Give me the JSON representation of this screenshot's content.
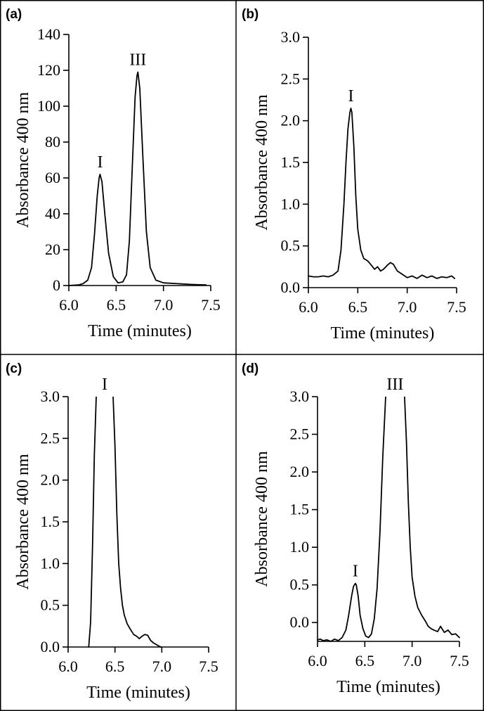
{
  "chart_data": [
    {
      "panel": "(a)",
      "type": "line",
      "xlabel": "Time (minutes)",
      "ylabel": "Absorbance 400 nm",
      "xlim": [
        6.0,
        7.5
      ],
      "ylim": [
        0,
        140
      ],
      "xticks": [
        "6.0",
        "6.5",
        "7.0",
        "7.5"
      ],
      "yticks": [
        "0",
        "20",
        "40",
        "60",
        "80",
        "100",
        "120",
        "140"
      ],
      "series": [
        {
          "name": "trace",
          "x": [
            6.0,
            6.1,
            6.15,
            6.2,
            6.24,
            6.27,
            6.3,
            6.32,
            6.33,
            6.35,
            6.38,
            6.42,
            6.47,
            6.52,
            6.57,
            6.61,
            6.64,
            6.67,
            6.7,
            6.72,
            6.73,
            6.75,
            6.78,
            6.82,
            6.86,
            6.92,
            7.0,
            7.15,
            7.3,
            7.45
          ],
          "y": [
            0,
            0.3,
            1,
            3,
            10,
            28,
            50,
            60,
            62,
            58,
            40,
            18,
            5,
            1.5,
            2,
            6,
            25,
            65,
            105,
            117,
            119,
            110,
            75,
            30,
            10,
            3,
            1.5,
            1,
            0.6,
            0.3
          ]
        }
      ],
      "annotations": [
        {
          "text": "I",
          "x": 6.33,
          "y": 62
        },
        {
          "text": "III",
          "x": 6.73,
          "y": 119
        }
      ]
    },
    {
      "panel": "(b)",
      "type": "line",
      "xlabel": "Time (minutes)",
      "ylabel": "Absorbance 400 nm",
      "xlim": [
        6.0,
        7.5
      ],
      "ylim": [
        0,
        3.0
      ],
      "xticks": [
        "6.0",
        "6.5",
        "7.0",
        "7.5"
      ],
      "yticks": [
        "0.0",
        "0.5",
        "1.0",
        "1.5",
        "2.0",
        "2.5",
        "3.0"
      ],
      "series": [
        {
          "name": "trace",
          "x": [
            6.0,
            6.05,
            6.1,
            6.15,
            6.2,
            6.25,
            6.3,
            6.33,
            6.36,
            6.38,
            6.4,
            6.42,
            6.43,
            6.44,
            6.46,
            6.48,
            6.5,
            6.53,
            6.56,
            6.6,
            6.63,
            6.67,
            6.7,
            6.73,
            6.76,
            6.8,
            6.83,
            6.86,
            6.9,
            6.95,
            7.0,
            7.05,
            7.1,
            7.15,
            7.2,
            7.25,
            7.3,
            7.35,
            7.4,
            7.45,
            7.48
          ],
          "y": [
            0.14,
            0.13,
            0.13,
            0.14,
            0.13,
            0.15,
            0.2,
            0.45,
            1.0,
            1.5,
            1.9,
            2.1,
            2.15,
            2.1,
            1.7,
            1.1,
            0.7,
            0.45,
            0.35,
            0.32,
            0.28,
            0.22,
            0.25,
            0.2,
            0.22,
            0.27,
            0.3,
            0.28,
            0.2,
            0.16,
            0.12,
            0.14,
            0.11,
            0.15,
            0.12,
            0.14,
            0.11,
            0.13,
            0.12,
            0.14,
            0.11
          ]
        }
      ],
      "annotations": [
        {
          "text": "I",
          "x": 6.43,
          "y": 2.15
        }
      ]
    },
    {
      "panel": "(c)",
      "type": "line",
      "xlabel": "Time (minutes)",
      "ylabel": "Absorbance 400 nm",
      "xlim": [
        6.0,
        7.5
      ],
      "ylim": [
        0,
        3.0
      ],
      "xticks": [
        "6.0",
        "6.5",
        "7.0",
        "7.5"
      ],
      "yticks": [
        "0.0",
        "0.5",
        "1.0",
        "1.5",
        "2.0",
        "2.5",
        "3.0"
      ],
      "series": [
        {
          "name": "trace",
          "x": [
            6.22,
            6.24,
            6.26,
            6.28,
            6.3
          ],
          "y": [
            0.0,
            0.3,
            1.2,
            2.3,
            3.0
          ]
        },
        {
          "name": "trace-tail",
          "x": [
            6.48,
            6.5,
            6.52,
            6.54,
            6.56,
            6.58,
            6.6,
            6.63,
            6.66,
            6.7,
            6.73,
            6.76,
            6.79,
            6.82,
            6.85,
            6.88,
            6.91,
            6.94,
            6.97,
            6.99
          ],
          "y": [
            3.0,
            2.4,
            1.6,
            1.0,
            0.7,
            0.5,
            0.38,
            0.28,
            0.22,
            0.15,
            0.13,
            0.1,
            0.13,
            0.15,
            0.14,
            0.08,
            0.05,
            0.03,
            0.01,
            0.0
          ]
        }
      ],
      "annotations": [
        {
          "text": "I",
          "x": 6.39,
          "y": 3.0
        }
      ]
    },
    {
      "panel": "(d)",
      "type": "line",
      "xlabel": "Time (minutes)",
      "ylabel": "Absorbance 400 nm",
      "xlim": [
        6.0,
        7.5
      ],
      "ylim": [
        -0.25,
        3.0
      ],
      "xticks": [
        "6.0",
        "6.5",
        "7.0",
        "7.5"
      ],
      "yticks": [
        "0.0",
        "0.5",
        "1.0",
        "1.5",
        "2.0",
        "2.5",
        "3.0"
      ],
      "series": [
        {
          "name": "trace-left",
          "x": [
            6.0,
            6.03,
            6.06,
            6.1,
            6.14,
            6.18,
            6.22,
            6.26,
            6.3,
            6.33,
            6.36,
            6.38,
            6.4,
            6.41,
            6.43,
            6.45,
            6.48,
            6.51,
            6.54,
            6.57,
            6.6,
            6.63,
            6.66,
            6.69,
            6.72
          ],
          "y": [
            -0.23,
            -0.22,
            -0.24,
            -0.23,
            -0.25,
            -0.22,
            -0.24,
            -0.2,
            -0.1,
            0.1,
            0.35,
            0.48,
            0.52,
            0.5,
            0.35,
            0.1,
            -0.08,
            -0.18,
            -0.2,
            -0.15,
            0.05,
            0.45,
            1.2,
            2.2,
            3.0
          ]
        },
        {
          "name": "trace-right",
          "x": [
            6.92,
            6.94,
            6.96,
            6.98,
            7.0,
            7.03,
            7.06,
            7.1,
            7.14,
            7.17,
            7.2,
            7.23,
            7.27,
            7.3,
            7.34,
            7.38,
            7.42,
            7.46,
            7.5
          ],
          "y": [
            3.0,
            2.4,
            1.6,
            1.0,
            0.6,
            0.35,
            0.2,
            0.1,
            0.02,
            -0.05,
            -0.08,
            -0.1,
            -0.12,
            -0.05,
            -0.13,
            -0.1,
            -0.16,
            -0.15,
            -0.2
          ]
        }
      ],
      "annotations": [
        {
          "text": "I",
          "x": 6.4,
          "y": 0.52
        },
        {
          "text": "III",
          "x": 6.82,
          "y": 3.0
        }
      ]
    }
  ]
}
